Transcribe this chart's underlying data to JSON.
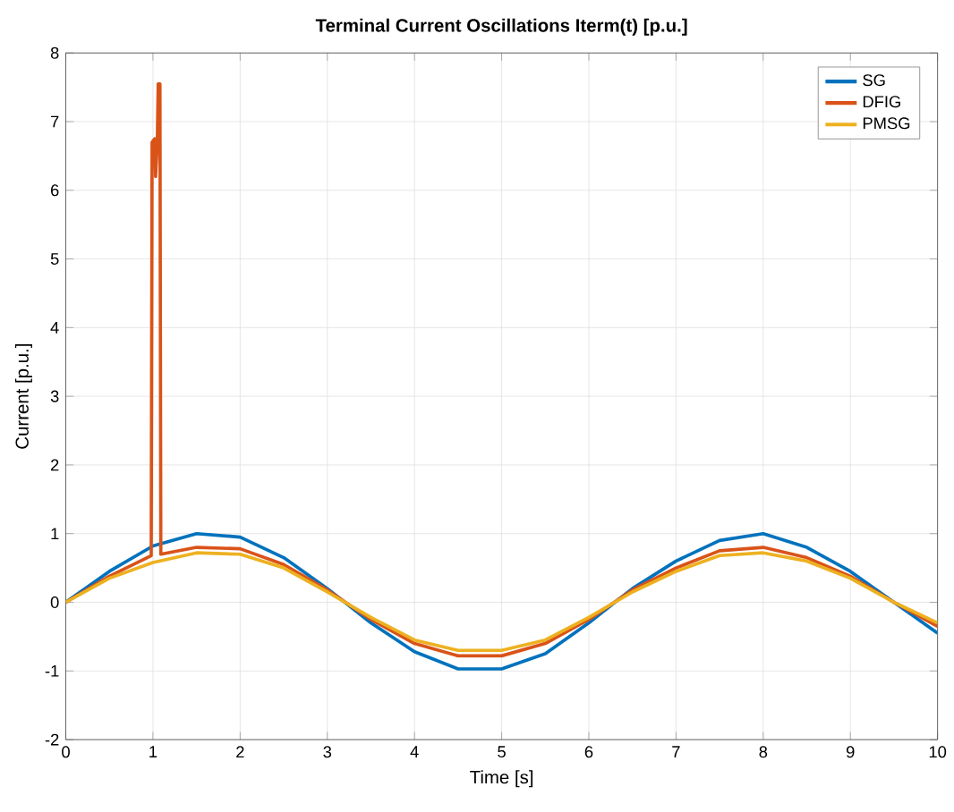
{
  "chart_data": {
    "type": "line",
    "title": "Terminal Current Oscillations Iterm(t) [p.u.]",
    "xlabel": "Time [s]",
    "ylabel": "Current [p.u.]",
    "xlim": [
      0,
      10
    ],
    "ylim": [
      -2,
      8
    ],
    "xticks": [
      0,
      1,
      2,
      3,
      4,
      5,
      6,
      7,
      8,
      9,
      10
    ],
    "yticks": [
      -2,
      -1,
      0,
      1,
      2,
      3,
      4,
      5,
      6,
      7,
      8
    ],
    "grid": true,
    "legend": "top right",
    "line_style": "solid",
    "marker": "none",
    "series": [
      {
        "name": "SG",
        "color": "#0072bd",
        "x": [
          0,
          0.5,
          1,
          1.5,
          2,
          2.5,
          3,
          3.5,
          4,
          4.5,
          5,
          5.5,
          6,
          6.5,
          7,
          7.5,
          8,
          8.5,
          9,
          9.5,
          10
        ],
        "values": [
          0,
          0.45,
          0.82,
          1.0,
          0.95,
          0.65,
          0.2,
          -0.3,
          -0.72,
          -0.97,
          -0.97,
          -0.75,
          -0.3,
          0.2,
          0.6,
          0.9,
          1.0,
          0.8,
          0.45,
          0.0,
          -0.45
        ]
      },
      {
        "name": "DFIG",
        "color": "#d95319",
        "x": [
          0,
          0.5,
          0.98,
          0.99,
          1.02,
          1.03,
          1.05,
          1.06,
          1.08,
          1.09,
          1.5,
          2,
          2.5,
          3,
          3.5,
          4,
          4.5,
          5,
          5.5,
          6,
          6.5,
          7,
          7.5,
          8,
          8.5,
          9,
          9.5,
          10
        ],
        "values": [
          0,
          0.38,
          0.68,
          6.7,
          6.75,
          6.2,
          6.7,
          7.55,
          7.55,
          0.7,
          0.8,
          0.78,
          0.55,
          0.18,
          -0.25,
          -0.6,
          -0.78,
          -0.78,
          -0.6,
          -0.25,
          0.18,
          0.5,
          0.75,
          0.8,
          0.65,
          0.38,
          0.0,
          -0.35
        ]
      },
      {
        "name": "PMSG",
        "color": "#edb120",
        "x": [
          0,
          0.5,
          1,
          1.5,
          2,
          2.5,
          3,
          3.5,
          4,
          4.5,
          5,
          5.5,
          6,
          6.5,
          7,
          7.5,
          8,
          8.5,
          9,
          9.5,
          10
        ],
        "values": [
          0,
          0.35,
          0.58,
          0.72,
          0.7,
          0.5,
          0.15,
          -0.22,
          -0.55,
          -0.7,
          -0.7,
          -0.55,
          -0.22,
          0.15,
          0.45,
          0.68,
          0.72,
          0.6,
          0.35,
          0.0,
          -0.3
        ]
      }
    ]
  }
}
